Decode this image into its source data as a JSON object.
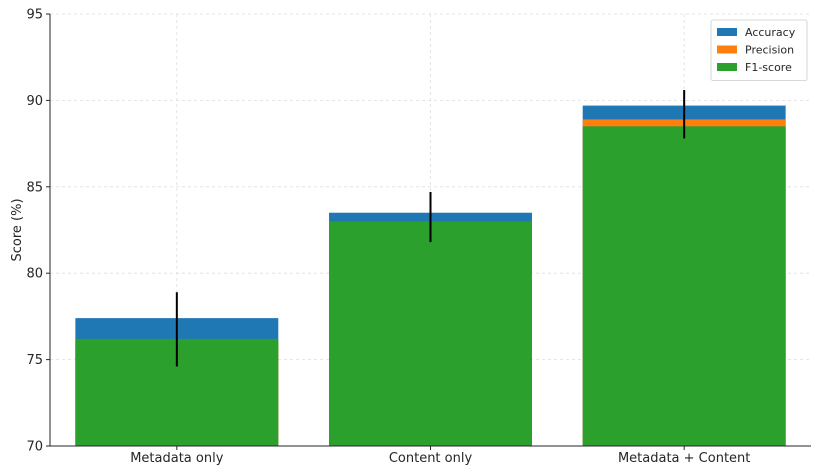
{
  "chart_data": {
    "type": "bar",
    "title": "",
    "xlabel": "",
    "ylabel": "Score (%)",
    "ylim": [
      70,
      95
    ],
    "yticks": [
      70,
      75,
      80,
      85,
      90,
      95
    ],
    "grid": true,
    "legend_position": "top-right",
    "categories": [
      "Metadata only",
      "Content only",
      "Metadata + Content"
    ],
    "series": [
      {
        "name": "Accuracy",
        "color": "#1f77b4",
        "values": [
          77.4,
          83.5,
          89.7
        ]
      },
      {
        "name": "Precision",
        "color": "#ff7f0e",
        "values": [
          76.0,
          82.8,
          88.9
        ]
      },
      {
        "name": "F1-score",
        "color": "#2ca02c",
        "values": [
          76.2,
          83.0,
          88.5
        ]
      }
    ],
    "error_bars": {
      "color": "#000000",
      "center": [
        76.75,
        83.25,
        89.2
      ],
      "half_width": [
        2.15,
        1.45,
        1.4
      ]
    }
  }
}
